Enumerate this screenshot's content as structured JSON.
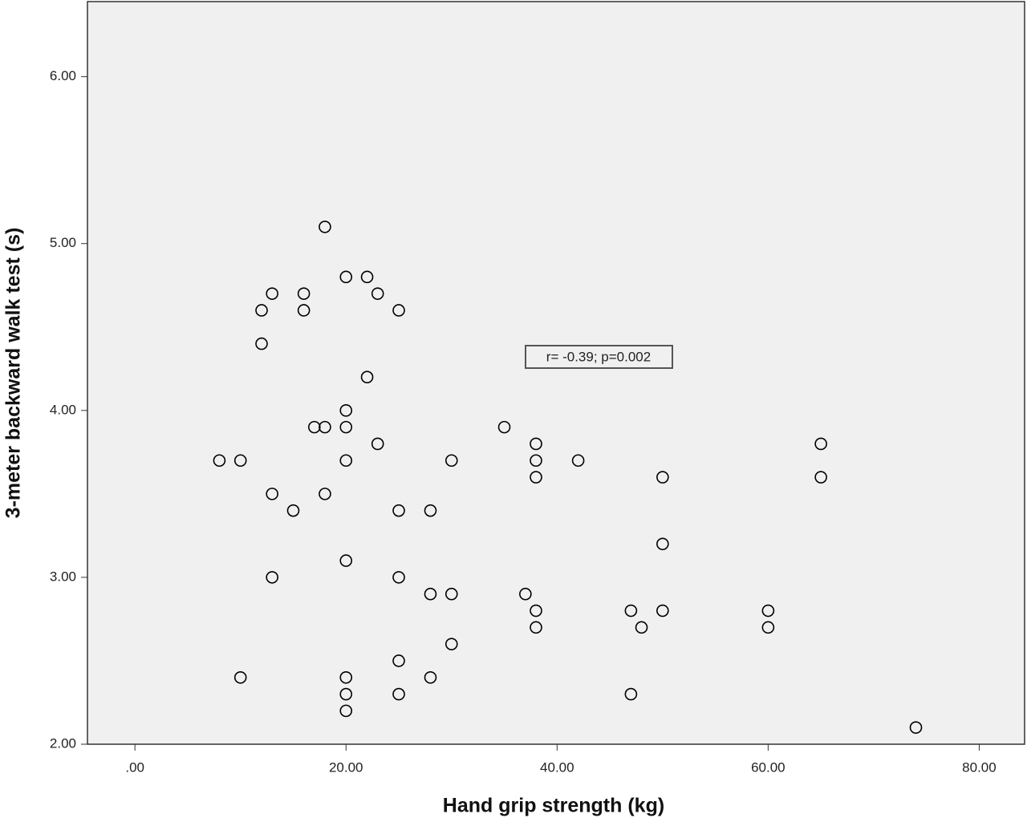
{
  "chart_data": {
    "type": "scatter",
    "xlabel": "Hand grip strength (kg)",
    "ylabel": "3-meter backward walk test (s)",
    "annotation": "r= -0.39; p=0.002",
    "color": "#000000",
    "background": "#f0f0f0",
    "x": [
      18,
      20,
      22,
      13,
      16,
      23,
      12,
      16,
      25,
      12,
      22,
      20,
      17,
      18,
      20,
      35,
      23,
      38,
      65,
      8,
      10,
      20,
      30,
      38,
      42,
      38,
      50,
      65,
      13,
      18,
      15,
      25,
      28,
      50,
      20,
      13,
      25,
      28,
      30,
      37,
      38,
      47,
      50,
      60,
      38,
      48,
      60,
      30,
      25,
      10,
      20,
      28,
      20,
      25,
      47,
      20,
      74
    ],
    "values": [
      5.1,
      4.8,
      4.8,
      4.7,
      4.7,
      4.7,
      4.6,
      4.6,
      4.6,
      4.4,
      4.2,
      4.0,
      3.9,
      3.9,
      3.9,
      3.9,
      3.8,
      3.8,
      3.8,
      3.7,
      3.7,
      3.7,
      3.7,
      3.7,
      3.7,
      3.6,
      3.6,
      3.6,
      3.5,
      3.5,
      3.4,
      3.4,
      3.4,
      3.2,
      3.1,
      3.0,
      3.0,
      2.9,
      2.9,
      2.9,
      2.8,
      2.8,
      2.8,
      2.8,
      2.7,
      2.7,
      2.7,
      2.6,
      2.5,
      2.4,
      2.4,
      2.4,
      2.3,
      2.3,
      2.3,
      2.2,
      2.1
    ],
    "xlim": [
      -4.5,
      84.3
    ],
    "ylim": [
      2,
      6.45
    ],
    "xticks": [
      {
        "value": 0,
        "label": ".00"
      },
      {
        "value": 20,
        "label": "20.00"
      },
      {
        "value": 40,
        "label": "40.00"
      },
      {
        "value": 60,
        "label": "60.00"
      },
      {
        "value": 80,
        "label": "80.00"
      }
    ],
    "yticks": [
      {
        "value": 2,
        "label": "2.00"
      },
      {
        "value": 3,
        "label": "3.00"
      },
      {
        "value": 4,
        "label": "4.00"
      },
      {
        "value": 5,
        "label": "5.00"
      },
      {
        "value": 6,
        "label": "6.00"
      }
    ]
  }
}
